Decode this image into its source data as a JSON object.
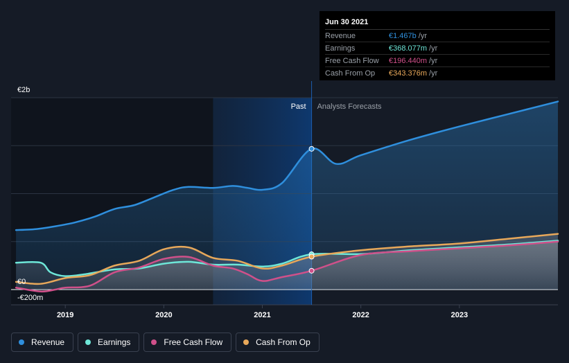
{
  "chart_data": {
    "type": "line",
    "title": "",
    "y_tick_labels": [
      "€2b",
      "€0",
      "-€200m"
    ],
    "y_ticks": [
      2000,
      0,
      -200
    ],
    "ylim": [
      -200,
      2000
    ],
    "x_tick_labels": [
      "2019",
      "2020",
      "2021",
      "2022",
      "2023"
    ],
    "x_ticks": [
      2019.0,
      2020.0,
      2021.0,
      2022.0,
      2023.0
    ],
    "xlim": [
      2018.45,
      2024.0
    ],
    "past_label": "Past",
    "forecast_label": "Analysts Forecasts",
    "past_end": 2021.5,
    "highlight_start": 2020.5,
    "series": [
      {
        "name": "Revenue",
        "color": "#2f8fdd",
        "x": [
          2018.5,
          2018.7,
          2018.9,
          2019.1,
          2019.3,
          2019.5,
          2019.7,
          2019.9,
          2020.1,
          2020.25,
          2020.5,
          2020.7,
          2020.85,
          2021.0,
          2021.2,
          2021.5,
          2021.75,
          2022.0,
          2022.5,
          2023.0,
          2023.5,
          2024.0
        ],
        "y": [
          620,
          630,
          660,
          700,
          760,
          840,
          880,
          960,
          1040,
          1070,
          1060,
          1080,
          1060,
          1040,
          1110,
          1467,
          1310,
          1400,
          1560,
          1700,
          1830,
          1960
        ]
      },
      {
        "name": "Earnings",
        "color": "#6ee7d8",
        "x": [
          2018.5,
          2018.75,
          2018.85,
          2019.0,
          2019.2,
          2019.5,
          2019.75,
          2020.0,
          2020.25,
          2020.5,
          2020.75,
          2021.0,
          2021.2,
          2021.5,
          2022.0,
          2022.5,
          2023.0,
          2023.5,
          2024.0
        ],
        "y": [
          280,
          280,
          180,
          140,
          160,
          210,
          220,
          270,
          290,
          260,
          260,
          240,
          270,
          368,
          370,
          410,
          440,
          470,
          510
        ]
      },
      {
        "name": "Free Cash Flow",
        "color": "#d0508a",
        "x": [
          2018.5,
          2018.75,
          2018.9,
          2019.0,
          2019.25,
          2019.5,
          2019.75,
          2020.0,
          2020.25,
          2020.5,
          2020.7,
          2020.85,
          2021.0,
          2021.2,
          2021.5,
          2022.0,
          2022.5,
          2023.0,
          2023.5,
          2024.0
        ],
        "y": [
          20,
          -20,
          0,
          20,
          40,
          180,
          230,
          320,
          340,
          250,
          220,
          160,
          90,
          130,
          196,
          360,
          400,
          430,
          460,
          500
        ]
      },
      {
        "name": "Cash From Op",
        "color": "#e8a85a",
        "x": [
          2018.5,
          2018.75,
          2019.0,
          2019.25,
          2019.5,
          2019.75,
          2020.0,
          2020.25,
          2020.5,
          2020.75,
          2021.0,
          2021.2,
          2021.5,
          2022.0,
          2022.5,
          2023.0,
          2023.5,
          2024.0
        ],
        "y": [
          80,
          60,
          120,
          150,
          250,
          300,
          420,
          440,
          330,
          300,
          220,
          250,
          343,
          410,
          450,
          480,
          530,
          580
        ]
      }
    ]
  },
  "tooltip": {
    "date": "Jun 30 2021",
    "rows": [
      {
        "label": "Revenue",
        "value": "€1.467b",
        "unit": "/yr",
        "color": "#2f8fdd"
      },
      {
        "label": "Earnings",
        "value": "€368.077m",
        "unit": "/yr",
        "color": "#6ee7d8"
      },
      {
        "label": "Free Cash Flow",
        "value": "€196.440m",
        "unit": "/yr",
        "color": "#d0508a"
      },
      {
        "label": "Cash From Op",
        "value": "€343.376m",
        "unit": "/yr",
        "color": "#e8a85a"
      }
    ]
  },
  "legend": [
    {
      "label": "Revenue",
      "color": "#2f8fdd"
    },
    {
      "label": "Earnings",
      "color": "#6ee7d8"
    },
    {
      "label": "Free Cash Flow",
      "color": "#d0508a"
    },
    {
      "label": "Cash From Op",
      "color": "#e8a85a"
    }
  ]
}
